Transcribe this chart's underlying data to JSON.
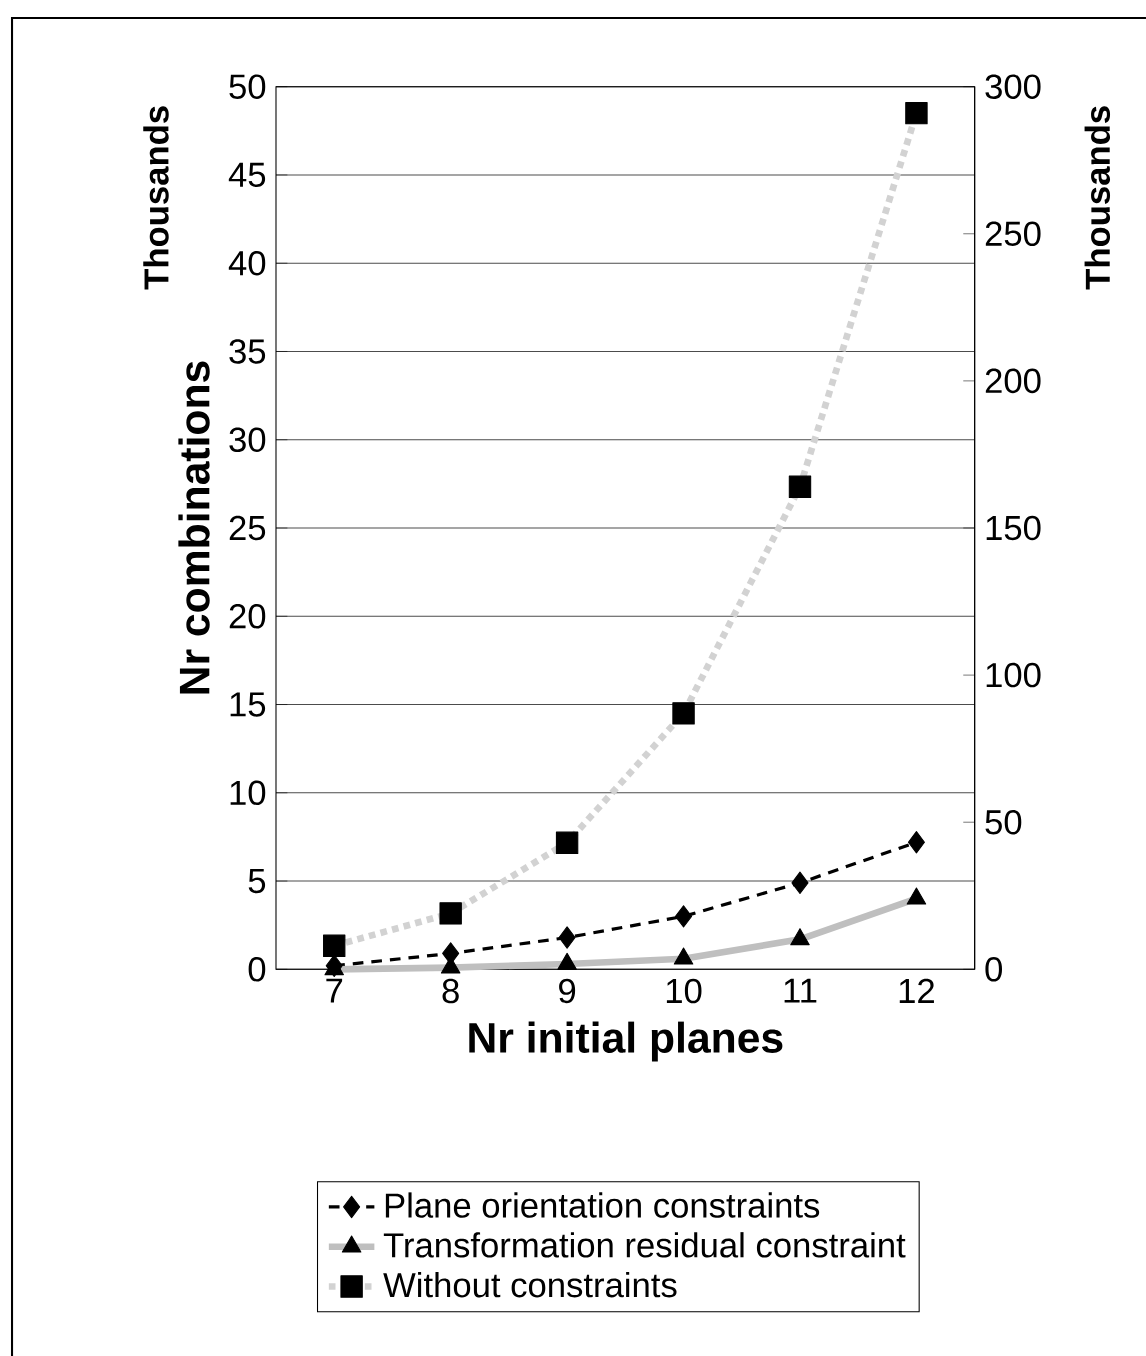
{
  "chart_data": {
    "type": "line",
    "categories": [
      "7",
      "8",
      "9",
      "10",
      "11",
      "12"
    ],
    "xlabel": "Nr initial planes",
    "ylabel": "Nr combinations",
    "annotations": [
      "Thousands",
      "Thousands"
    ],
    "ylim": [
      0,
      50
    ],
    "yticks": [
      0,
      5,
      10,
      15,
      20,
      25,
      30,
      35,
      40,
      45,
      50
    ],
    "y2lim": [
      0,
      300
    ],
    "y2ticks": [
      0,
      50,
      100,
      150,
      200,
      250,
      300
    ],
    "grid": "y",
    "legend": "bottom",
    "series": [
      {
        "name": "Plane orientation constraints",
        "color": "#000000",
        "marker": "diamond",
        "line_style": "dashed",
        "values": [
          0.2,
          0.9,
          1.8,
          3.0,
          4.9,
          7.2
        ]
      },
      {
        "name": "Transformation residual constraint",
        "color": "#000000",
        "marker": "triangle",
        "line_style": "solid",
        "values": [
          0,
          0.1,
          0.3,
          0.6,
          1.7,
          4.0
        ]
      },
      {
        "name": "Without constraints",
        "color": "#000000",
        "marker": "square",
        "line_style": "dotted",
        "axis": "y2",
        "values": [
          8,
          19,
          43,
          87,
          164,
          291
        ]
      }
    ]
  }
}
